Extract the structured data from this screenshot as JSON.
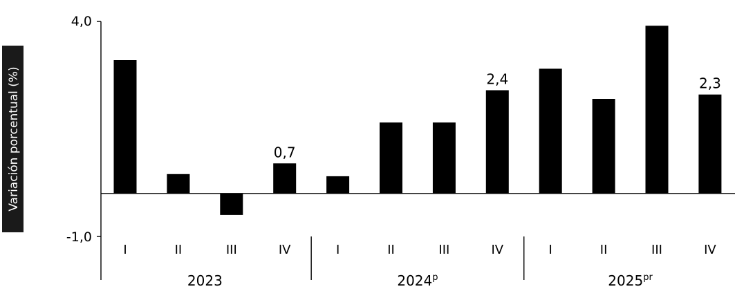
{
  "chart_data": {
    "type": "bar",
    "ylabel": "Variación porcentual (%)",
    "ylim": [
      -1.0,
      4.0
    ],
    "yticks": [
      "4,0",
      "-1,0"
    ],
    "groups": [
      {
        "label": "2023",
        "superscript": "",
        "categories": [
          "I",
          "II",
          "III",
          "IV"
        ]
      },
      {
        "label": "2024",
        "superscript": "p",
        "categories": [
          "I",
          "II",
          "III",
          "IV"
        ]
      },
      {
        "label": "2025",
        "superscript": "pr",
        "categories": [
          "I",
          "II",
          "III",
          "IV"
        ]
      }
    ],
    "values": [
      3.1,
      0.45,
      -0.5,
      0.7,
      0.4,
      1.65,
      1.65,
      2.4,
      2.9,
      2.2,
      3.9,
      2.3
    ],
    "data_labels": [
      "",
      "",
      "",
      "0,7",
      "",
      "",
      "",
      "2,4",
      "",
      "",
      "",
      "2,3"
    ],
    "bar_color": "#000000"
  }
}
